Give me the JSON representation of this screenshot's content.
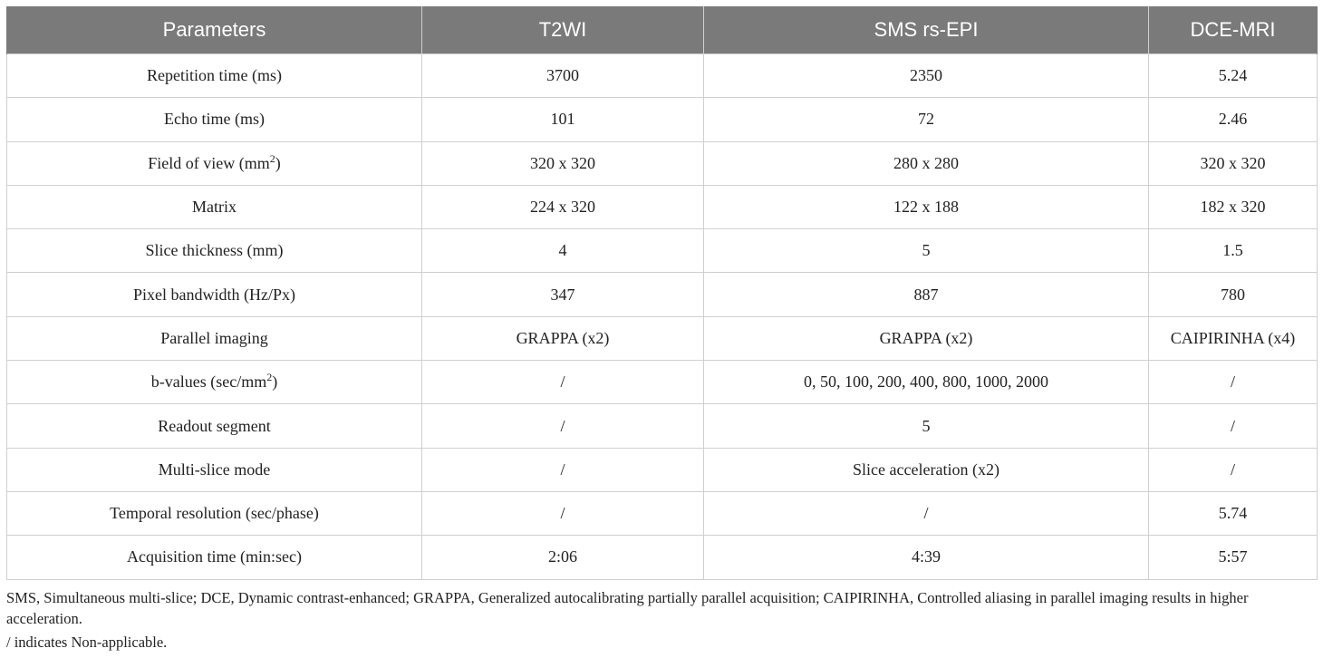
{
  "table": {
    "headers": [
      "Parameters",
      "T2WI",
      "SMS rs-EPI",
      "DCE-MRI"
    ],
    "rows": [
      {
        "param": "Repetition time (ms)",
        "sup": "",
        "param_after": "",
        "t2wi": "3700",
        "sms": "2350",
        "dce": "5.24"
      },
      {
        "param": "Echo time (ms)",
        "sup": "",
        "param_after": "",
        "t2wi": "101",
        "sms": "72",
        "dce": "2.46"
      },
      {
        "param": "Field of view (mm",
        "sup": "2",
        "param_after": ")",
        "t2wi": "320 x 320",
        "sms": "280 x 280",
        "dce": "320 x 320"
      },
      {
        "param": "Matrix",
        "sup": "",
        "param_after": "",
        "t2wi": "224 x 320",
        "sms": "122 x 188",
        "dce": "182 x 320"
      },
      {
        "param": "Slice thickness (mm)",
        "sup": "",
        "param_after": "",
        "t2wi": "4",
        "sms": "5",
        "dce": "1.5"
      },
      {
        "param": "Pixel bandwidth (Hz/Px)",
        "sup": "",
        "param_after": "",
        "t2wi": "347",
        "sms": "887",
        "dce": "780"
      },
      {
        "param": "Parallel imaging",
        "sup": "",
        "param_after": "",
        "t2wi": "GRAPPA (x2)",
        "sms": "GRAPPA (x2)",
        "dce": "CAIPIRINHA (x4)"
      },
      {
        "param": "b-values (sec/mm",
        "sup": "2",
        "param_after": ")",
        "t2wi": "/",
        "sms": "0, 50, 100, 200, 400, 800, 1000, 2000",
        "dce": "/"
      },
      {
        "param": "Readout segment",
        "sup": "",
        "param_after": "",
        "t2wi": "/",
        "sms": "5",
        "dce": "/"
      },
      {
        "param": "Multi-slice mode",
        "sup": "",
        "param_after": "",
        "t2wi": "/",
        "sms": "Slice acceleration (x2)",
        "dce": "/"
      },
      {
        "param": "Temporal resolution (sec/phase)",
        "sup": "",
        "param_after": "",
        "t2wi": "/",
        "sms": "/",
        "dce": "5.74"
      },
      {
        "param": "Acquisition time (min:sec)",
        "sup": "",
        "param_after": "",
        "t2wi": "2:06",
        "sms": "4:39",
        "dce": "5:57"
      }
    ]
  },
  "footnotes": {
    "abbreviations": "SMS, Simultaneous multi-slice; DCE, Dynamic contrast-enhanced; GRAPPA, Generalized autocalibrating partially parallel acquisition; CAIPIRINHA, Controlled aliasing in parallel imaging results in higher acceleration.",
    "slash_note": "/ indicates Non-applicable."
  },
  "colors": {
    "header_bg": "#7a7a7a",
    "header_text": "#ffffff",
    "grid_line": "#cfcfcf"
  }
}
